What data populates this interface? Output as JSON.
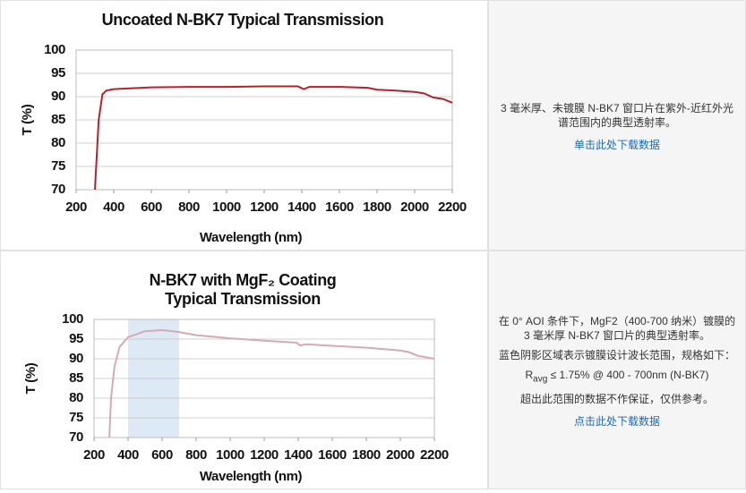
{
  "chart_data": [
    {
      "type": "line",
      "title": [
        "Uncoated N-BK7 Typical Transmission"
      ],
      "xlabel": "Wavelength (nm)",
      "ylabel": "T (%)",
      "x": [
        300,
        320,
        340,
        360,
        400,
        500,
        600,
        800,
        1000,
        1200,
        1380,
        1410,
        1440,
        1600,
        1750,
        1800,
        1900,
        2000,
        2050,
        2100,
        2150,
        2200
      ],
      "series": [
        {
          "name": "Uncoated N-BK7",
          "color": "#b5222a",
          "values": [
            70,
            85,
            90.5,
            91.3,
            91.6,
            91.8,
            92,
            92.1,
            92.1,
            92.2,
            92.2,
            91.6,
            92.1,
            92.1,
            91.9,
            91.5,
            91.3,
            91,
            90.7,
            89.8,
            89.5,
            88.7
          ]
        }
      ],
      "xlim": [
        200,
        2200
      ],
      "xticks": [
        200,
        400,
        600,
        800,
        1000,
        1200,
        1400,
        1600,
        1800,
        2000,
        2200
      ],
      "ylim": [
        70,
        100
      ],
      "yticks": [
        70,
        75,
        80,
        85,
        90,
        95,
        100
      ],
      "grid": true
    },
    {
      "type": "line",
      "title": [
        "N-BK7 with MgF₂ Coating",
        "Typical Transmission"
      ],
      "xlabel": "Wavelength (nm)",
      "ylabel": "T (%)",
      "shaded_range": [
        400,
        700
      ],
      "shaded_color": "#dde9f5",
      "x": [
        290,
        300,
        320,
        350,
        400,
        500,
        600,
        700,
        800,
        1000,
        1200,
        1390,
        1410,
        1450,
        1600,
        1800,
        2000,
        2050,
        2100,
        2200
      ],
      "series": [
        {
          "name": "MgF2 coated N-BK7",
          "color": "#d6aab4",
          "values": [
            70,
            80,
            88,
            93,
            95.5,
            97,
            97.3,
            96.8,
            96,
            95.2,
            94.6,
            94.1,
            93.4,
            93.7,
            93.3,
            92.8,
            92.1,
            91.7,
            90.8,
            90
          ]
        }
      ],
      "xlim": [
        200,
        2200
      ],
      "xticks": [
        200,
        400,
        600,
        800,
        1000,
        1200,
        1400,
        1600,
        1800,
        2000,
        2200
      ],
      "ylim": [
        70,
        100
      ],
      "yticks": [
        70,
        75,
        80,
        85,
        90,
        95,
        100
      ],
      "grid": true
    }
  ],
  "descriptions": [
    {
      "paragraphs": [
        "3 毫米厚、未镀膜 N-BK7 窗口片在紫外-近红外光谱范围内的典型透射率。"
      ],
      "link": "单击此处下载数据"
    },
    {
      "paragraphs": [
        "在 0° AOI 条件下，MgF2（400-700 纳米）镀膜的 3 毫米厚 N-BK7 窗口片的典型透射率。",
        "蓝色阴影区域表示镀膜设计波长范围，规格如下："
      ],
      "spec": {
        "symbol": "R",
        "subscript": "avg",
        "text": " ≤ 1.75% @ 400 - 700nm (N-BK7)"
      },
      "note": "超出此范围的数据不作保证，仅供参考。",
      "link": "点击此处下载数据"
    }
  ]
}
